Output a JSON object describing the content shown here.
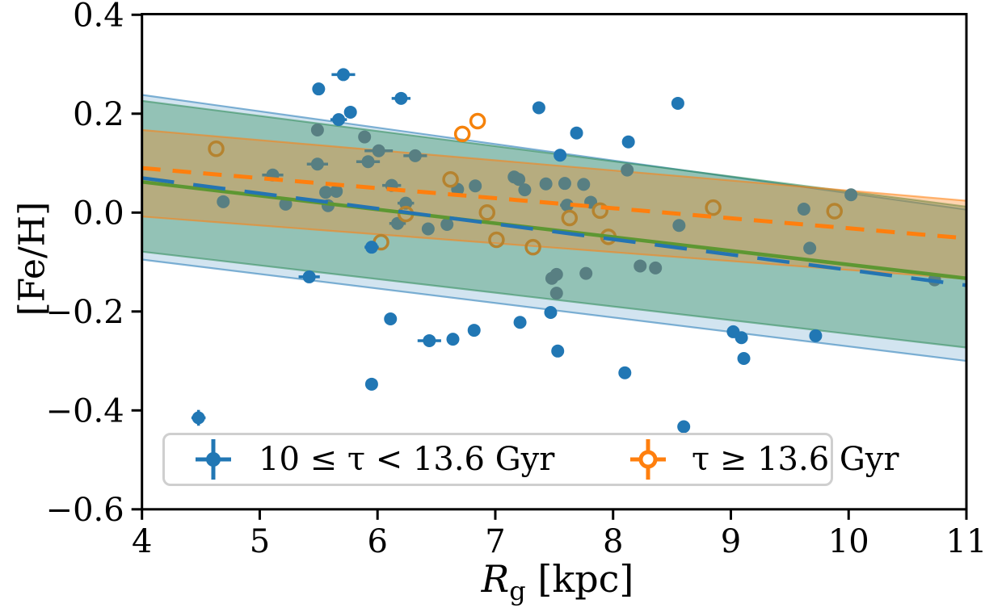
{
  "chart_data": {
    "type": "scatter",
    "title": "",
    "xlabel_parts": {
      "r": "R",
      "sub": "g",
      "rest": " [kpc]"
    },
    "ylabel": "[Fe/H]",
    "xlim": [
      4,
      11
    ],
    "ylim": [
      -0.6,
      0.4
    ],
    "grid": false,
    "xticks": {
      "values": [
        4,
        5,
        6,
        7,
        8,
        9,
        10,
        11
      ],
      "labels": [
        "4",
        "5",
        "6",
        "7",
        "8",
        "9",
        "10",
        "11"
      ]
    },
    "yticks": {
      "values": [
        0.4,
        0.2,
        0.0,
        -0.2,
        -0.4,
        -0.6
      ],
      "labels": [
        "0.4",
        "0.2",
        "0.0",
        "−0.2",
        "−0.4",
        "−0.6"
      ]
    },
    "legend": {
      "position": "lower left",
      "entries": [
        {
          "label": "10 ≤ τ < 13.6 Gyr",
          "color": "#2177b4",
          "marker": "filled-circle-errorbar"
        },
        {
          "label": "τ ≥ 13.6 Gyr",
          "color": "#ff7f0e",
          "marker": "open-circle-errorbar"
        }
      ]
    },
    "colors": {
      "blue": "#2177b4",
      "muted_blue": "#587f82",
      "orange": "#f5820b",
      "orange_dim": "#b5832f",
      "green_line": "#5d9732",
      "blue_line": "#2474b2",
      "orange_line": "#ff7f0e",
      "blue_band": "#1f77b4",
      "green_band": "#2e8b57",
      "orange_band": "#ff7f0e"
    },
    "bands": [
      {
        "name": "blue-confidence-band",
        "color": "#1f77b4",
        "alpha": 0.2,
        "x": [
          4,
          11
        ],
        "top": [
          0.238,
          0.006
        ],
        "bottom": [
          -0.095,
          -0.3
        ]
      },
      {
        "name": "green-confidence-band",
        "color": "#2e8b57",
        "alpha": 0.38,
        "x": [
          4,
          11
        ],
        "top": [
          0.226,
          0.012
        ],
        "bottom": [
          -0.079,
          -0.273
        ]
      },
      {
        "name": "orange-confidence-band",
        "color": "#ff7f0e",
        "alpha": 0.33,
        "x": [
          4,
          11
        ],
        "top": [
          0.167,
          0.024
        ],
        "bottom": [
          -0.008,
          -0.134
        ]
      }
    ],
    "lines": [
      {
        "name": "orange-fit-line",
        "color": "#ff7f0e",
        "style": "dashed",
        "width": 5,
        "x": [
          4,
          11
        ],
        "y": [
          0.09,
          -0.052
        ]
      },
      {
        "name": "green-fit-line",
        "color": "#5d9732",
        "style": "solid",
        "width": 4.5,
        "x": [
          4,
          11
        ],
        "y": [
          0.062,
          -0.133
        ]
      },
      {
        "name": "blue-fit-line",
        "color": "#2474b2",
        "style": "long-dashed",
        "width": 4.5,
        "x": [
          4,
          11
        ],
        "y": [
          0.07,
          -0.147
        ]
      }
    ],
    "series": [
      {
        "name": "stars 10≤τ<13.6 Gyr (opaque)",
        "marker": "filled-circle",
        "color": "#2177b4",
        "points": [
          [
            5.71,
            0.279,
            0.1,
            0.012
          ],
          [
            5.5,
            0.25,
            0,
            0
          ],
          [
            6.2,
            0.231,
            0.08,
            0.008
          ],
          [
            5.77,
            0.203,
            0,
            0
          ],
          [
            5.67,
            0.188,
            0.07,
            0.008
          ],
          [
            7.37,
            0.212,
            0,
            0
          ],
          [
            7.69,
            0.161,
            0,
            0
          ],
          [
            8.13,
            0.143,
            0,
            0
          ],
          [
            8.55,
            0.221,
            0,
            0
          ],
          [
            7.55,
            0.116,
            0,
            0
          ],
          [
            5.95,
            -0.07,
            0.06,
            0.008
          ],
          [
            5.42,
            -0.13,
            0.09,
            0.008
          ],
          [
            6.11,
            -0.215,
            0.05,
            0.008
          ],
          [
            6.44,
            -0.259,
            0.1,
            0.008
          ],
          [
            6.64,
            -0.256,
            0,
            0
          ],
          [
            6.82,
            -0.238,
            0,
            0
          ],
          [
            7.21,
            -0.222,
            0,
            0
          ],
          [
            7.47,
            -0.202,
            0,
            0
          ],
          [
            7.53,
            -0.28,
            0,
            0
          ],
          [
            8.1,
            -0.324,
            0,
            0
          ],
          [
            5.95,
            -0.347,
            0.05,
            0.008
          ],
          [
            4.48,
            -0.415,
            0.06,
            0.016
          ],
          [
            8.6,
            -0.433,
            0,
            0
          ],
          [
            9.02,
            -0.241,
            0,
            0
          ],
          [
            9.09,
            -0.253,
            0,
            0
          ],
          [
            9.72,
            -0.249,
            0,
            0
          ],
          [
            9.11,
            -0.295,
            0,
            0
          ]
        ]
      },
      {
        "name": "stars 10≤τ<13.6 Gyr (muted, behind bands)",
        "marker": "filled-circle",
        "color": "#587f82",
        "points": [
          [
            5.49,
            0.167,
            0,
            0
          ],
          [
            5.89,
            0.153,
            0,
            0
          ],
          [
            6.01,
            0.125,
            0.12,
            0.008
          ],
          [
            6.32,
            0.115,
            0.1,
            0.008
          ],
          [
            5.92,
            0.103,
            0.1,
            0.008
          ],
          [
            5.49,
            0.098,
            0.09,
            0.008
          ],
          [
            5.11,
            0.076,
            0.09,
            0.008
          ],
          [
            6.12,
            0.055,
            0.08,
            0.008
          ],
          [
            5.56,
            0.041,
            0,
            0
          ],
          [
            5.65,
            0.043,
            0,
            0
          ],
          [
            4.69,
            0.022,
            0,
            0
          ],
          [
            5.22,
            0.017,
            0,
            0
          ],
          [
            5.58,
            0.014,
            0,
            0
          ],
          [
            6.24,
            0.019,
            0.07,
            0.008
          ],
          [
            6.17,
            -0.022,
            0.07,
            0.008
          ],
          [
            6.43,
            -0.033,
            0,
            0
          ],
          [
            6.59,
            -0.024,
            0,
            0
          ],
          [
            6.68,
            0.047,
            0,
            0
          ],
          [
            6.83,
            0.054,
            0,
            0
          ],
          [
            7.16,
            0.072,
            0,
            0
          ],
          [
            7.2,
            0.067,
            0,
            0
          ],
          [
            7.25,
            0.046,
            0,
            0
          ],
          [
            7.43,
            0.058,
            0,
            0
          ],
          [
            7.59,
            0.059,
            0,
            0
          ],
          [
            7.75,
            0.057,
            0,
            0
          ],
          [
            7.61,
            0.015,
            0.06,
            0.008
          ],
          [
            7.81,
            0.021,
            0,
            0
          ],
          [
            8.12,
            0.086,
            0,
            0
          ],
          [
            8.56,
            -0.026,
            0,
            0
          ],
          [
            7.48,
            -0.133,
            0,
            0
          ],
          [
            7.52,
            -0.125,
            0,
            0
          ],
          [
            7.52,
            -0.163,
            0,
            0
          ],
          [
            7.77,
            -0.123,
            0,
            0
          ],
          [
            8.23,
            -0.108,
            0,
            0
          ],
          [
            8.36,
            -0.112,
            0,
            0
          ],
          [
            9.62,
            0.007,
            0,
            0
          ],
          [
            10.02,
            0.036,
            0,
            0
          ],
          [
            9.67,
            -0.072,
            0,
            0
          ],
          [
            10.73,
            -0.136,
            0,
            0
          ]
        ]
      },
      {
        "name": "stars τ≥13.6 Gyr (open circles)",
        "marker": "open-circle",
        "color": "#f5820b",
        "dim_color": "#b5832f",
        "points": [
          [
            6.85,
            0.185,
            1
          ],
          [
            6.72,
            0.159,
            1
          ],
          [
            4.63,
            0.129,
            0
          ],
          [
            6.62,
            0.067,
            0
          ],
          [
            6.93,
            0.0,
            0
          ],
          [
            6.24,
            -0.003,
            0
          ],
          [
            6.03,
            -0.06,
            0
          ],
          [
            7.01,
            -0.055,
            0
          ],
          [
            7.32,
            -0.07,
            0
          ],
          [
            7.63,
            -0.011,
            0
          ],
          [
            7.89,
            0.004,
            0
          ],
          [
            7.96,
            -0.049,
            0
          ],
          [
            8.85,
            0.01,
            0
          ],
          [
            9.88,
            0.003,
            0
          ]
        ]
      }
    ]
  }
}
